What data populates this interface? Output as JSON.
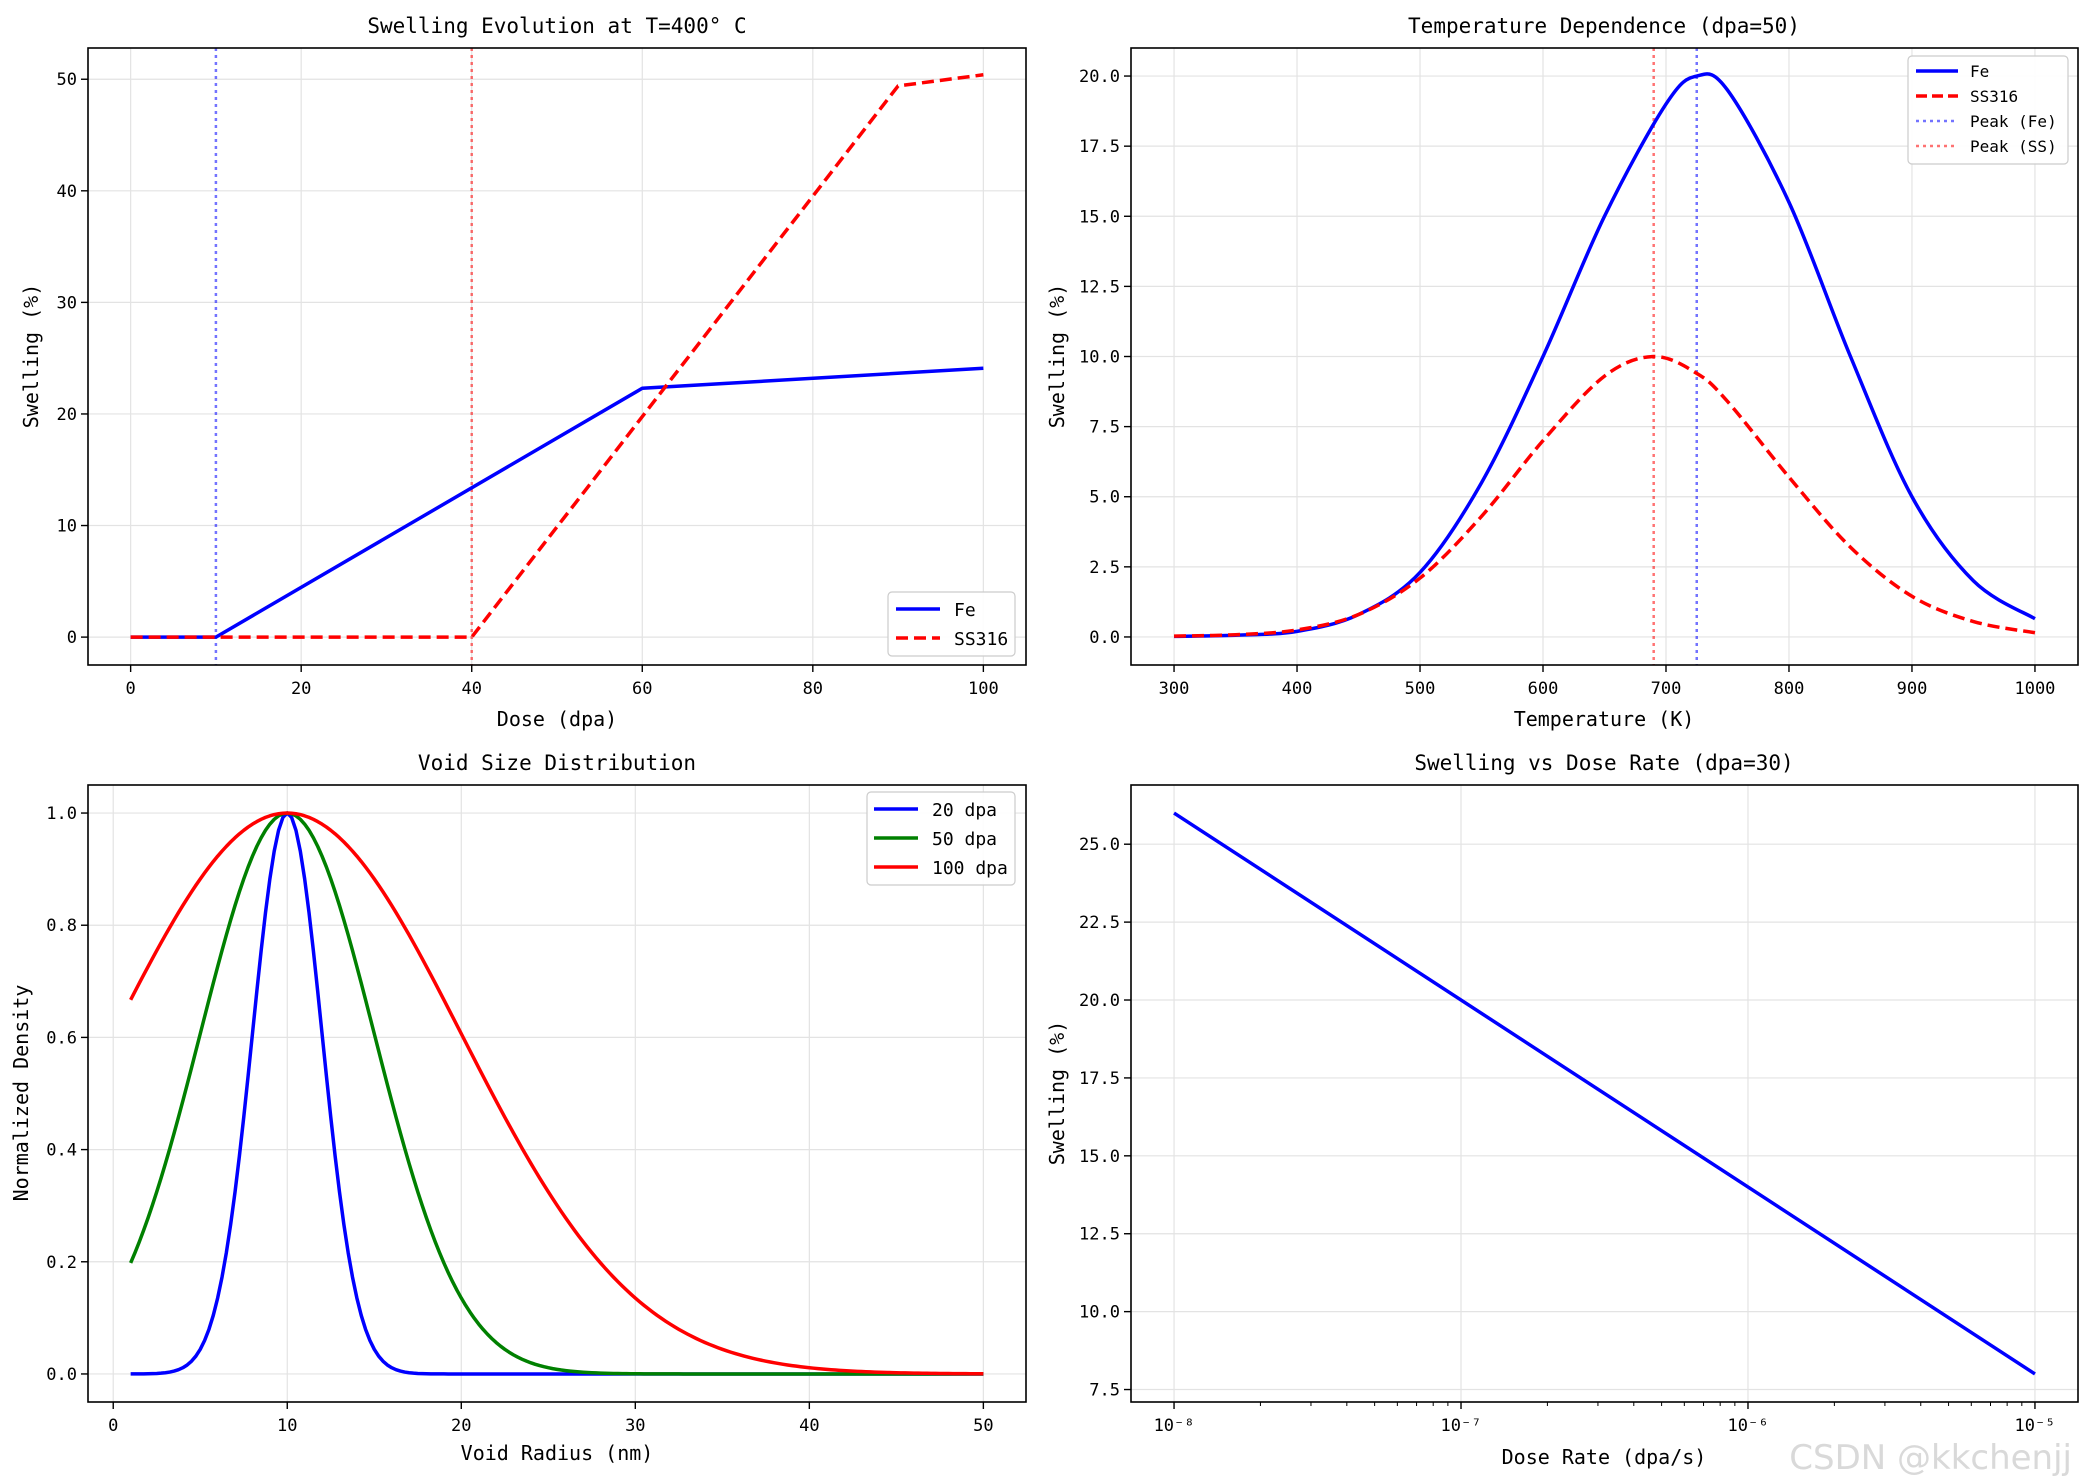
{
  "watermark": "CSDN @kkchenjj",
  "colors": {
    "fe": "#0000ff",
    "ss": "#ff0000",
    "green": "#008000",
    "grid": "#e3e3e3"
  },
  "chart_data": [
    {
      "id": "p1",
      "type": "line",
      "title": "Swelling Evolution at T=400° C",
      "xlabel": "Dose (dpa)",
      "ylabel": "Swelling (%)",
      "xlim": [
        -5,
        105
      ],
      "ylim": [
        -2.5,
        52.8
      ],
      "xticks": [
        0,
        20,
        40,
        60,
        80,
        100
      ],
      "xtick_labels": [
        "0",
        "20",
        "40",
        "60",
        "80",
        "100"
      ],
      "yticks": [
        0,
        10,
        20,
        30,
        40,
        50
      ],
      "ytick_labels": [
        "0",
        "10",
        "20",
        "30",
        "40",
        "50"
      ],
      "legend": {
        "position": "lower right"
      },
      "series": [
        {
          "name": "Fe",
          "style": "solid",
          "color": "#0000ff",
          "x": [
            0,
            10,
            60,
            100
          ],
          "y": [
            0,
            0,
            22.3,
            24.1
          ]
        },
        {
          "name": "SS316",
          "style": "dashed",
          "color": "#ff0000",
          "x": [
            0,
            40,
            90,
            100
          ],
          "y": [
            0,
            0,
            49.4,
            50.4
          ]
        }
      ],
      "vlines": [
        {
          "x": 10,
          "color": "#0000ff"
        },
        {
          "x": 40,
          "color": "#ff0000"
        }
      ]
    },
    {
      "id": "p2",
      "type": "line",
      "title": "Temperature Dependence (dpa=50)",
      "xlabel": "Temperature (K)",
      "ylabel": "Swelling (%)",
      "xlim": [
        265,
        1035
      ],
      "ylim": [
        -1.0,
        21.0
      ],
      "xticks": [
        300,
        400,
        500,
        600,
        700,
        800,
        900,
        1000
      ],
      "xtick_labels": [
        "300",
        "400",
        "500",
        "600",
        "700",
        "800",
        "900",
        "1000"
      ],
      "yticks": [
        0,
        2.5,
        5,
        7.5,
        10,
        12.5,
        15,
        17.5,
        20
      ],
      "ytick_labels": [
        "0.0",
        "2.5",
        "5.0",
        "7.5",
        "10.0",
        "12.5",
        "15.0",
        "17.5",
        "20.0"
      ],
      "legend": {
        "position": "upper right"
      },
      "series": [
        {
          "name": "Fe",
          "style": "solid",
          "color": "#0000ff",
          "x": [
            300,
            350,
            400,
            450,
            500,
            550,
            600,
            650,
            700,
            725,
            750,
            800,
            850,
            900,
            950,
            1000
          ],
          "y": [
            0.02,
            0.06,
            0.2,
            0.8,
            2.3,
            5.5,
            10.0,
            15.0,
            19.0,
            20.0,
            19.5,
            15.5,
            10.0,
            5.0,
            2.0,
            0.65
          ]
        },
        {
          "name": "SS316",
          "style": "dashed",
          "color": "#ff0000",
          "x": [
            300,
            350,
            400,
            450,
            500,
            550,
            600,
            650,
            690,
            725,
            750,
            800,
            850,
            900,
            950,
            1000
          ],
          "y": [
            0.03,
            0.08,
            0.25,
            0.8,
            2.1,
            4.3,
            7.0,
            9.3,
            10.0,
            9.4,
            8.4,
            5.7,
            3.2,
            1.45,
            0.55,
            0.15
          ]
        }
      ],
      "vlines": [
        {
          "name": "Peak (Fe)",
          "x": 725,
          "color": "#0000ff"
        },
        {
          "name": "Peak (SS)",
          "x": 690,
          "color": "#ff0000"
        }
      ]
    },
    {
      "id": "p3",
      "type": "line",
      "title": "Void Size Distribution",
      "xlabel": "Void Radius (nm)",
      "ylabel": "Normalized Density",
      "xlim": [
        -1.45,
        52.45
      ],
      "ylim": [
        -0.05,
        1.05
      ],
      "xticks": [
        0,
        10,
        20,
        30,
        40,
        50
      ],
      "xtick_labels": [
        "0",
        "10",
        "20",
        "30",
        "40",
        "50"
      ],
      "yticks": [
        0,
        0.2,
        0.4,
        0.6,
        0.8,
        1.0
      ],
      "ytick_labels": [
        "0.0",
        "0.2",
        "0.4",
        "0.6",
        "0.8",
        "1.0"
      ],
      "legend": {
        "position": "upper right"
      },
      "series": [
        {
          "name": "20 dpa",
          "style": "solid",
          "color": "#0000ff",
          "gaussian": {
            "mu": 10,
            "sigma": 2,
            "xmin": 1,
            "xmax": 50
          }
        },
        {
          "name": "50 dpa",
          "style": "solid",
          "color": "#008000",
          "gaussian": {
            "mu": 10,
            "sigma": 5,
            "xmin": 1,
            "xmax": 50
          }
        },
        {
          "name": "100 dpa",
          "style": "solid",
          "color": "#ff0000",
          "gaussian": {
            "mu": 10,
            "sigma": 10,
            "xmin": 1,
            "xmax": 50
          }
        }
      ]
    },
    {
      "id": "p4",
      "type": "line",
      "title": "Swelling vs Dose Rate (dpa=30)",
      "xlabel": "Dose Rate (dpa/s)",
      "ylabel": "Swelling (%)",
      "xscale": "log",
      "xlim": [
        -8.15,
        -4.85
      ],
      "ylim": [
        7.1,
        26.9
      ],
      "xticks": [
        -8,
        -7,
        -6,
        -5
      ],
      "xtick_labels": [
        "10⁻⁸",
        "10⁻⁷",
        "10⁻⁶",
        "10⁻⁵"
      ],
      "yticks": [
        7.5,
        10,
        12.5,
        15,
        17.5,
        20,
        22.5,
        25
      ],
      "ytick_labels": [
        "7.5",
        "10.0",
        "12.5",
        "15.0",
        "17.5",
        "20.0",
        "22.5",
        "25.0"
      ],
      "series": [
        {
          "name": "swelling",
          "style": "solid",
          "color": "#0000ff",
          "x": [
            -8,
            -5
          ],
          "y": [
            26.0,
            8.0
          ]
        }
      ]
    }
  ]
}
